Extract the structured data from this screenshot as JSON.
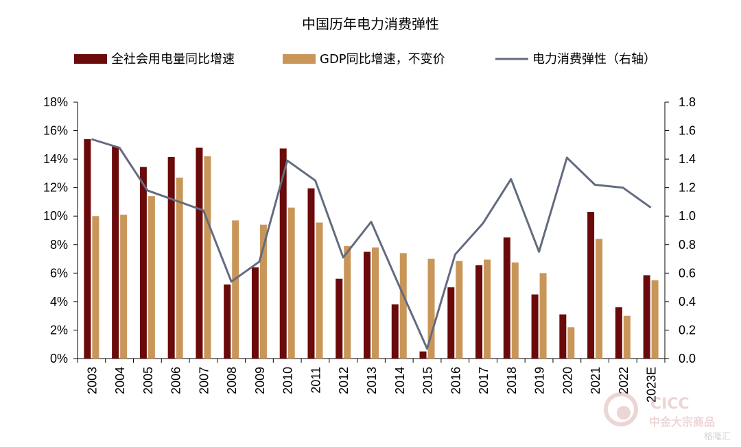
{
  "chart_data": {
    "type": "bar",
    "title": "中国历年电力消费弹性",
    "categories": [
      "2003",
      "2004",
      "2005",
      "2006",
      "2007",
      "2008",
      "2009",
      "2010",
      "2011",
      "2012",
      "2013",
      "2014",
      "2015",
      "2016",
      "2017",
      "2018",
      "2019",
      "2020",
      "2021",
      "2022",
      "2023E"
    ],
    "series": [
      {
        "name": "全社会用电量同比增速",
        "type": "bar",
        "axis": "left",
        "color": "#6b0a0a",
        "values": [
          15.4,
          14.9,
          13.45,
          14.15,
          14.8,
          5.2,
          6.4,
          14.75,
          11.95,
          5.6,
          7.5,
          3.8,
          0.5,
          5.0,
          6.55,
          8.5,
          4.5,
          3.1,
          10.3,
          3.6,
          5.85
        ]
      },
      {
        "name": "GDP同比增速，不变价",
        "type": "bar",
        "axis": "left",
        "color": "#c9965a",
        "values": [
          10.0,
          10.1,
          11.4,
          12.7,
          14.2,
          9.7,
          9.4,
          10.6,
          9.55,
          7.9,
          7.8,
          7.4,
          7.0,
          6.85,
          6.95,
          6.75,
          6.0,
          2.2,
          8.4,
          3.0,
          5.5
        ]
      },
      {
        "name": "电力消费弹性（右轴）",
        "type": "line",
        "axis": "right",
        "color": "#636b80",
        "values": [
          1.54,
          1.48,
          1.18,
          1.11,
          1.04,
          0.54,
          0.68,
          1.39,
          1.25,
          0.71,
          0.96,
          0.51,
          0.07,
          0.73,
          0.95,
          1.26,
          0.75,
          1.41,
          1.22,
          1.2,
          1.06
        ]
      }
    ],
    "left_axis": {
      "min": 0,
      "max": 18,
      "step": 2,
      "labels": [
        "0%",
        "2%",
        "4%",
        "6%",
        "8%",
        "10%",
        "12%",
        "14%",
        "16%",
        "18%"
      ]
    },
    "right_axis": {
      "min": 0,
      "max": 1.8,
      "step": 0.2,
      "labels": [
        "0.0",
        "0.2",
        "0.4",
        "0.6",
        "0.8",
        "1.0",
        "1.2",
        "1.4",
        "1.6",
        "1.8"
      ]
    },
    "grid": false,
    "legend_position": "top"
  },
  "watermark": {
    "line1": "CICC",
    "line2": "中金大宗商品",
    "line3": "格隆汇"
  }
}
